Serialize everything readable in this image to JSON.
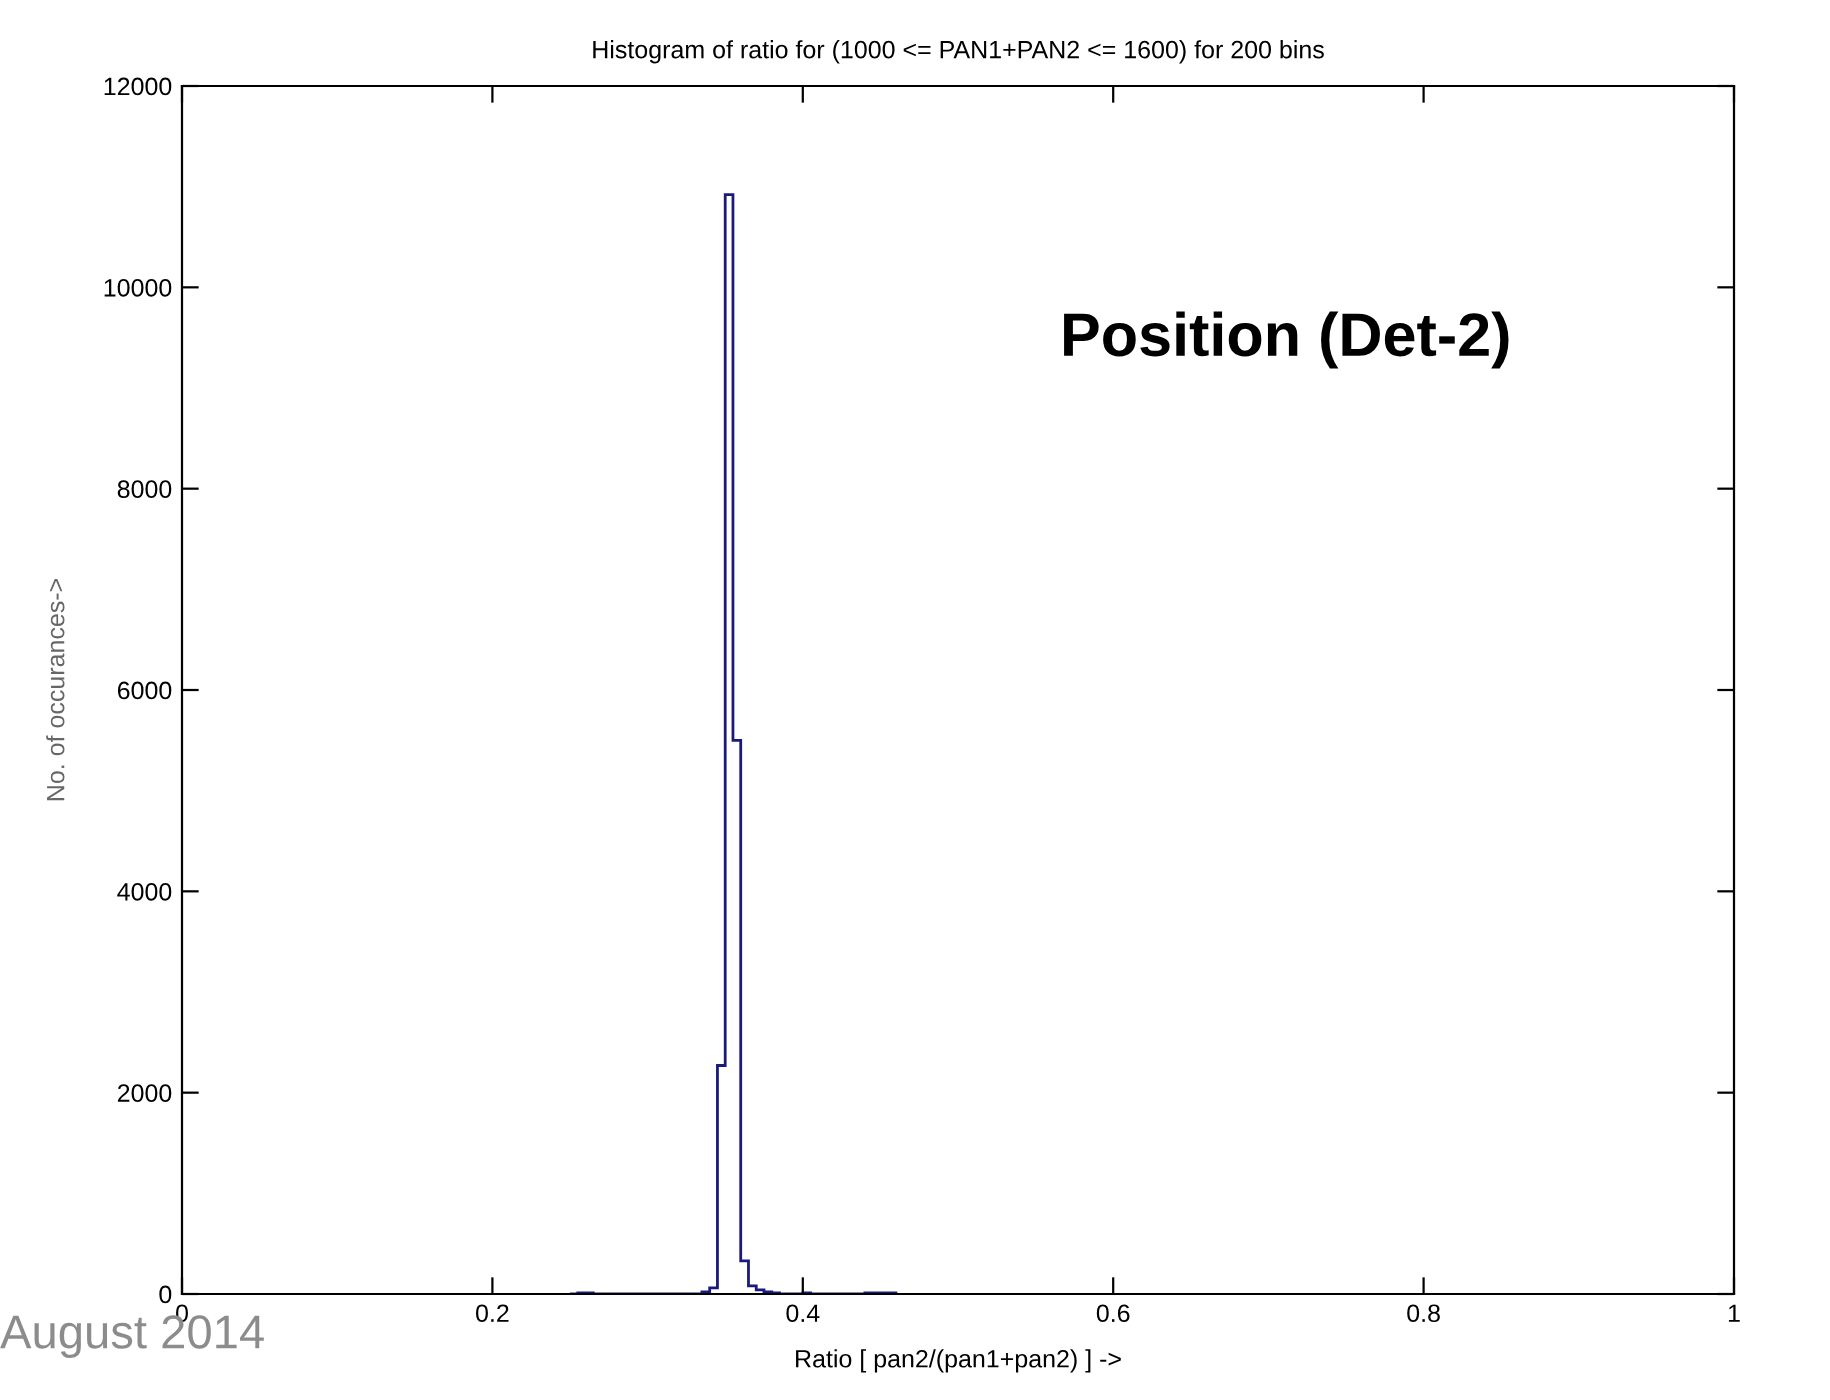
{
  "chart_data": {
    "type": "histogram",
    "title": "Histogram of ratio for (1000 <= PAN1+PAN2 <= 1600) for 200 bins",
    "xlabel": "Ratio [ pan2/(pan1+pan2) ] ->",
    "ylabel": "No. of occurances->",
    "bins": [
      0.25,
      0.255,
      0.26,
      0.265,
      0.27,
      0.275,
      0.28,
      0.285,
      0.29,
      0.295,
      0.3,
      0.305,
      0.31,
      0.315,
      0.32,
      0.325,
      0.33,
      0.335,
      0.34,
      0.345,
      0.35,
      0.355,
      0.36,
      0.365,
      0.37,
      0.375,
      0.38,
      0.385,
      0.39,
      0.395,
      0.4,
      0.405,
      0.41,
      0.415,
      0.42,
      0.425,
      0.43,
      0.435,
      0.44,
      0.445,
      0.45,
      0.455,
      0.46
    ],
    "values": [
      0,
      10,
      10,
      0,
      0,
      0,
      0,
      0,
      0,
      0,
      0,
      0,
      0,
      0,
      0,
      0,
      0,
      20,
      60,
      2270,
      10920,
      5500,
      330,
      80,
      40,
      20,
      10,
      0,
      0,
      0,
      10,
      0,
      0,
      0,
      0,
      0,
      0,
      0,
      10,
      10,
      10,
      10
    ],
    "color": "#1a1a7a",
    "xlim": [
      0,
      1
    ],
    "xticks": [
      0,
      0.2,
      0.4,
      0.6,
      0.8,
      1
    ],
    "ylim": [
      0,
      12000
    ],
    "yticks": [
      0,
      2000,
      4000,
      6000,
      8000,
      10000,
      12000
    ],
    "grid": false,
    "annotations": [
      "Position (Det-2)",
      "August 2014"
    ]
  }
}
